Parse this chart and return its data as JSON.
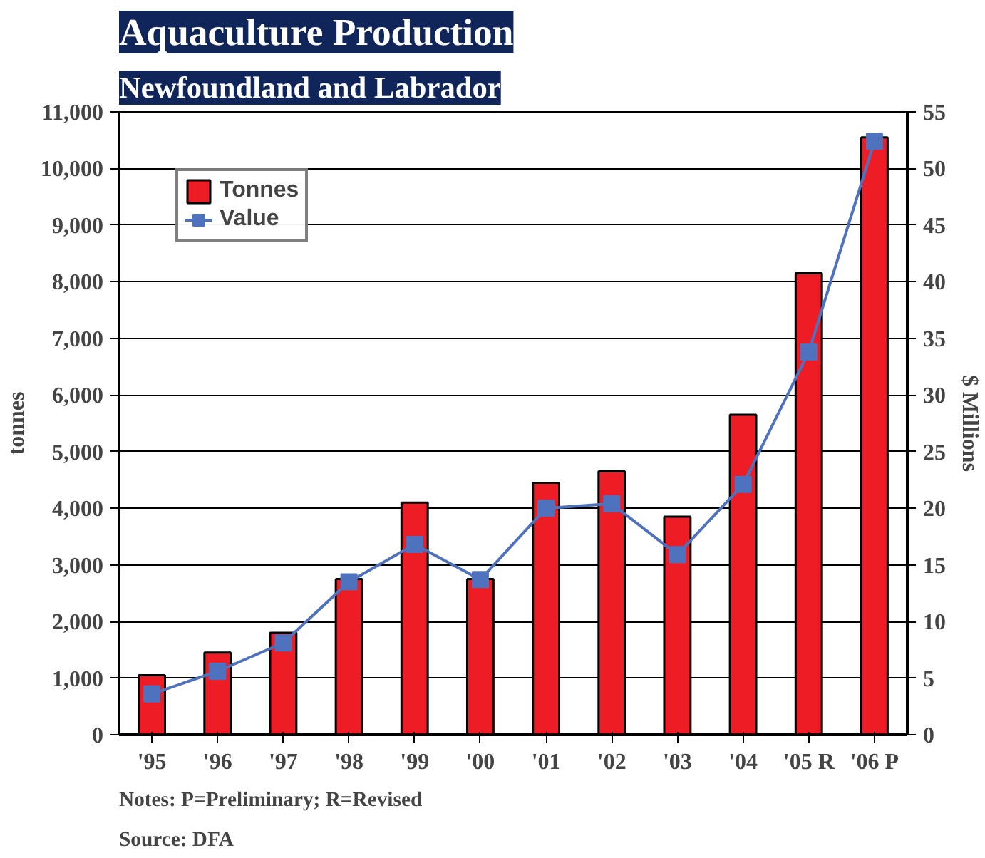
{
  "chart_data": {
    "type": "bar",
    "title": "Aquaculture Production",
    "subtitle": "Newfoundland and Labrador",
    "ylabel": "tonnes",
    "y2label": "$ Millions",
    "categories": [
      "'95",
      "'96",
      "'97",
      "'98",
      "'99",
      "'00",
      "'01",
      "'02",
      "'03",
      "'04",
      "'05 R",
      "'06 P"
    ],
    "series": [
      {
        "name": "Tonnes",
        "color": "#ee1c25",
        "values": [
          1050,
          1450,
          1800,
          2750,
          4100,
          2750,
          4450,
          4650,
          3850,
          5650,
          8150,
          10550
        ]
      },
      {
        "name": "Value",
        "type": "line",
        "axis": "y2",
        "color": "#4f72be",
        "marker": "square",
        "values": [
          3.6,
          5.6,
          8.1,
          13.5,
          16.8,
          13.7,
          20.0,
          20.4,
          15.9,
          22.1,
          33.8,
          52.4
        ]
      }
    ],
    "ylim": [
      0,
      11000
    ],
    "yticks": [
      {
        "value": 0,
        "label": "0"
      },
      {
        "value": 1000,
        "label": "1,000"
      },
      {
        "value": 2000,
        "label": "2,000"
      },
      {
        "value": 3000,
        "label": "3,000"
      },
      {
        "value": 4000,
        "label": "4,000"
      },
      {
        "value": 5000,
        "label": "5,000"
      },
      {
        "value": 6000,
        "label": "6,000"
      },
      {
        "value": 7000,
        "label": "7,000"
      },
      {
        "value": 8000,
        "label": "8,000"
      },
      {
        "value": 9000,
        "label": "9,000"
      },
      {
        "value": 10000,
        "label": "10,000"
      },
      {
        "value": 11000,
        "label": "11,000"
      }
    ],
    "y2lim": [
      0,
      55
    ],
    "y2ticks": [
      0,
      5,
      10,
      15,
      20,
      25,
      30,
      35,
      40,
      45,
      50,
      55
    ],
    "grid": "y",
    "legend": "top left",
    "annotations": [
      "Notes: P=Preliminary; R=Revised",
      "Source: DFA"
    ]
  }
}
